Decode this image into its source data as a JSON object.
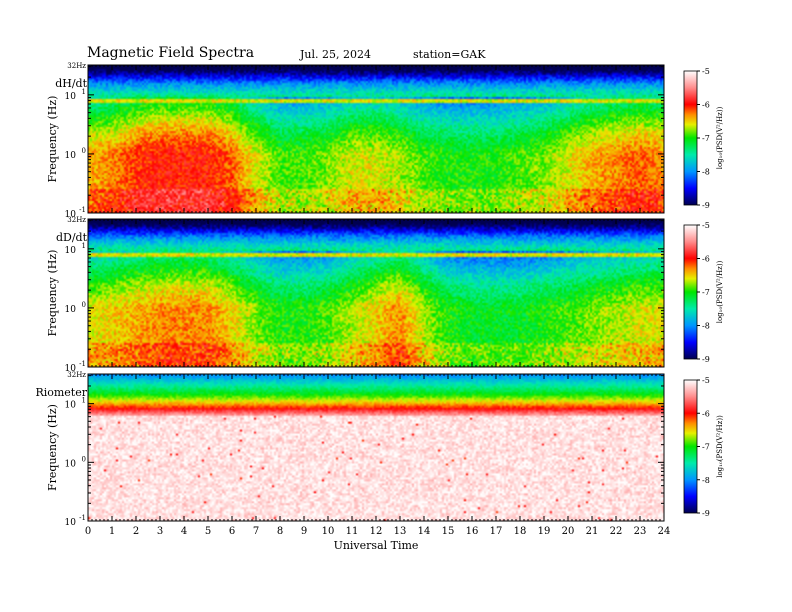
{
  "header": {
    "title": "Magnetic Field Spectra",
    "date": "Jul. 25, 2024",
    "station": "station=GAK"
  },
  "chart_data": [
    {
      "type": "heatmap",
      "panel_label": "dH/dt",
      "ylabel": "Frequency (Hz)",
      "xlim": [
        0,
        24
      ],
      "ylim": [
        0.1,
        32
      ],
      "yscale": "log",
      "top_label": "32Hz",
      "y_tick_labels": [
        {
          "base": "10",
          "exp": "1"
        },
        {
          "base": "10",
          "exp": "0"
        },
        {
          "base": "10",
          "exp": "-1"
        }
      ],
      "colorbar": {
        "label": "log₁₀(PSD(V²/Hz))",
        "range": [
          -9,
          -5
        ],
        "ticks": [
          "-5",
          "-6",
          "-7",
          "-8",
          "-9"
        ]
      },
      "profile": {
        "low_freq_level": [
          -6.4,
          -6.3,
          -6.1,
          -6.0,
          -6.0,
          -6.0,
          -6.2,
          -6.6,
          -6.9,
          -6.9,
          -6.8,
          -6.6,
          -6.6,
          -6.7,
          -6.9,
          -7.0,
          -7.0,
          -7.0,
          -6.9,
          -6.8,
          -6.6,
          -6.4,
          -6.3,
          -6.2,
          -6.3
        ]
      }
    },
    {
      "type": "heatmap",
      "panel_label": "dD/dt",
      "ylabel": "Frequency (Hz)",
      "xlim": [
        0,
        24
      ],
      "ylim": [
        0.1,
        32
      ],
      "yscale": "log",
      "top_label": "32Hz",
      "y_tick_labels": [
        {
          "base": "10",
          "exp": "1"
        },
        {
          "base": "10",
          "exp": "0"
        },
        {
          "base": "10",
          "exp": "-1"
        }
      ],
      "colorbar": {
        "label": "log₁₀(PSD(V²/Hz))",
        "range": [
          -9,
          -5
        ],
        "ticks": [
          "-5",
          "-6",
          "-7",
          "-8",
          "-9"
        ]
      },
      "profile": {
        "low_freq_level": [
          -6.6,
          -6.5,
          -6.4,
          -6.3,
          -6.3,
          -6.3,
          -6.5,
          -6.8,
          -7.0,
          -7.0,
          -6.9,
          -6.7,
          -6.5,
          -6.3,
          -6.7,
          -7.0,
          -7.1,
          -7.1,
          -7.1,
          -7.0,
          -6.9,
          -6.8,
          -6.7,
          -6.6,
          -6.6
        ]
      }
    },
    {
      "type": "heatmap",
      "panel_label": "Riometer",
      "ylabel": "Frequency (Hz)",
      "xlim": [
        0,
        24
      ],
      "ylim": [
        0.1,
        32
      ],
      "yscale": "log",
      "top_label": "32Hz",
      "y_tick_labels": [
        {
          "base": "10",
          "exp": "1"
        },
        {
          "base": "10",
          "exp": "0"
        },
        {
          "base": "10",
          "exp": "-1"
        }
      ],
      "colorbar": {
        "label": "log₁₀(PSD(V²/Hz))",
        "range": [
          -9,
          -5
        ],
        "ticks": [
          "-5",
          "-6",
          "-7",
          "-8",
          "-9"
        ]
      },
      "profile": {
        "noise_floor_level": -5.0,
        "band_10hz_level": -6.3
      }
    }
  ],
  "x_axis": {
    "label": "Universal Time",
    "ticks": [
      "0",
      "1",
      "2",
      "3",
      "4",
      "5",
      "6",
      "7",
      "8",
      "9",
      "10",
      "11",
      "12",
      "13",
      "14",
      "15",
      "16",
      "17",
      "18",
      "19",
      "20",
      "21",
      "22",
      "23",
      "24"
    ]
  }
}
